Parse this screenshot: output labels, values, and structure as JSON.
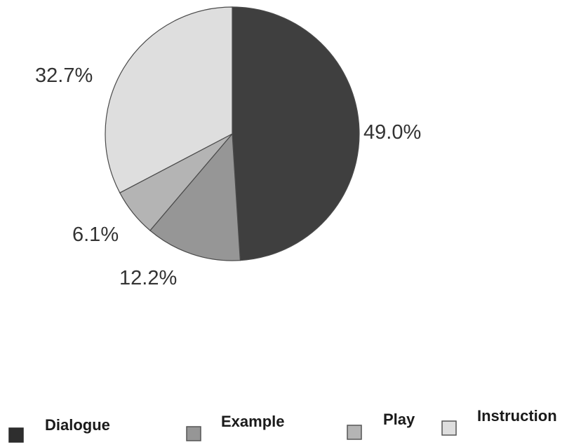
{
  "chart_data": {
    "type": "pie",
    "categories": [
      "Dialogue",
      "Example",
      "Play",
      "Instruction"
    ],
    "values": [
      49.0,
      12.2,
      6.1,
      32.7
    ],
    "labels": [
      "49.0%",
      "12.2%",
      "6.1%",
      "32.7%"
    ],
    "colors": [
      "#3f3f3f",
      "#969696",
      "#b4b4b4",
      "#dedede"
    ],
    "title": "",
    "legend_position": "bottom",
    "start_angle": "top",
    "direction": "clockwise"
  }
}
